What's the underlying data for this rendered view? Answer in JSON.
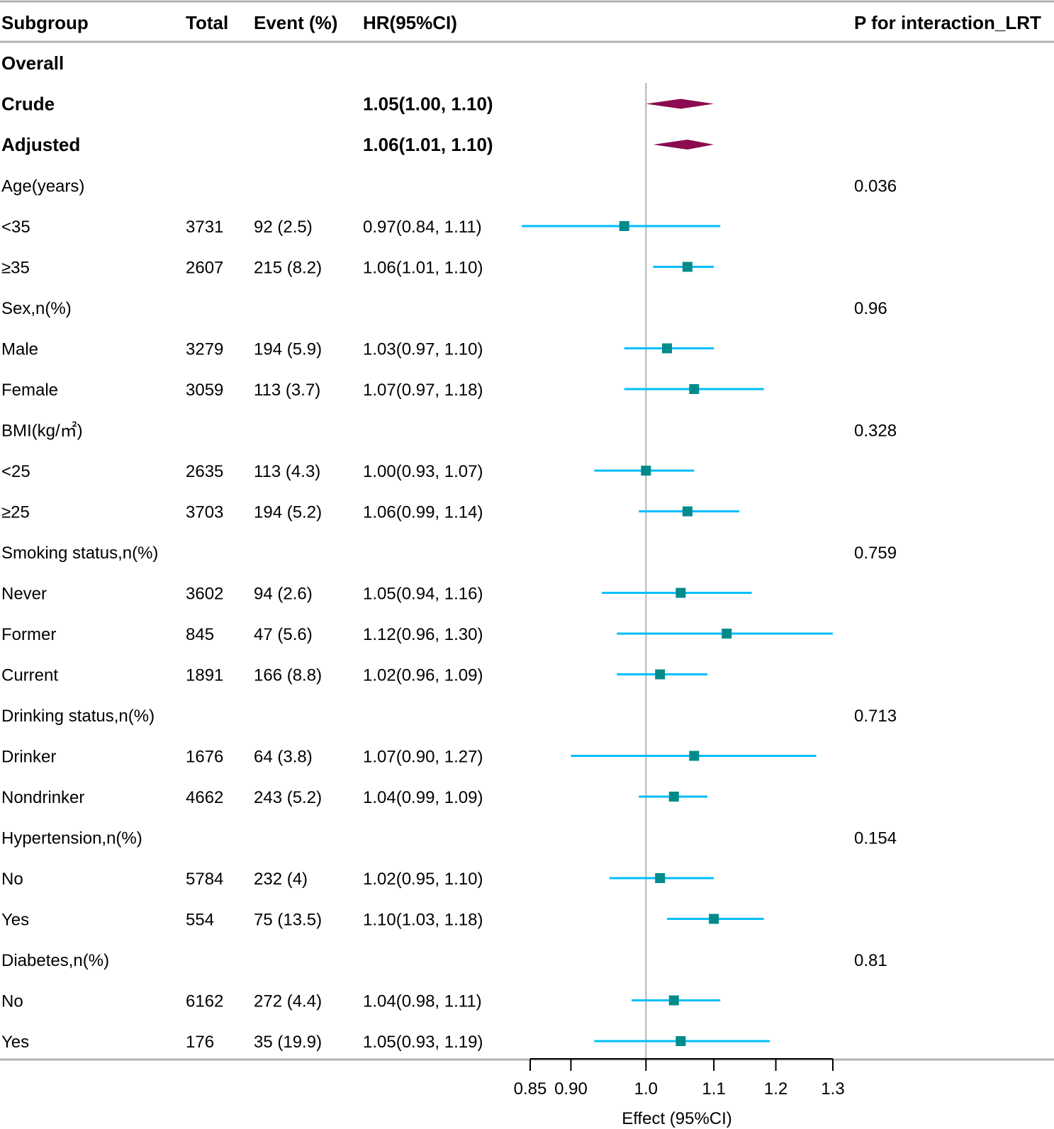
{
  "chart_data": {
    "type": "forest",
    "columns": {
      "subgroup": "Subgroup",
      "total": "Total",
      "event": "Event (%)",
      "hr": "HR(95%CI)",
      "p": "P for interaction_LRT"
    },
    "reference_line": 1.0,
    "x_axis": {
      "label": "Effect (95%CI)",
      "scale": "log",
      "range": [
        0.85,
        1.3
      ],
      "ticks": [
        {
          "value": 0.85,
          "label": "0.85"
        },
        {
          "value": 0.9,
          "label": "0.90"
        },
        {
          "value": 1.0,
          "label": "1.0"
        },
        {
          "value": 1.1,
          "label": "1.1"
        },
        {
          "value": 1.2,
          "label": "1.2"
        },
        {
          "value": 1.3,
          "label": "1.3"
        }
      ]
    },
    "colors": {
      "ci_line": "#00bfff",
      "point": "#008b8b",
      "diamond": "#8b0a50",
      "ref_line": "#b4b4b4",
      "rule": "#b4b4b4"
    },
    "rows": [
      {
        "label": "Overall",
        "bold": true
      },
      {
        "label": "Crude",
        "bold": true,
        "hr_text": "1.05(1.00, 1.10)",
        "est": 1.05,
        "lo": 1.0,
        "hi": 1.1,
        "shape": "diamond"
      },
      {
        "label": "Adjusted",
        "bold": true,
        "hr_text": "1.06(1.01, 1.10)",
        "est": 1.06,
        "lo": 1.01,
        "hi": 1.1,
        "shape": "diamond"
      },
      {
        "label": "Age(years)",
        "p": "0.036"
      },
      {
        "label": "<35",
        "total": "3731",
        "event": "92 (2.5)",
        "hr_text": "0.97(0.84, 1.11)",
        "est": 0.97,
        "lo": 0.84,
        "hi": 1.11
      },
      {
        "label": "≥35",
        "total": "2607",
        "event": "215 (8.2)",
        "hr_text": "1.06(1.01, 1.10)",
        "est": 1.06,
        "lo": 1.01,
        "hi": 1.1
      },
      {
        "label": "Sex,n(%)",
        "p": "0.96"
      },
      {
        "label": "Male",
        "total": "3279",
        "event": "194 (5.9)",
        "hr_text": "1.03(0.97, 1.10)",
        "est": 1.03,
        "lo": 0.97,
        "hi": 1.1
      },
      {
        "label": "Female",
        "total": "3059",
        "event": "113 (3.7)",
        "hr_text": "1.07(0.97, 1.18)",
        "est": 1.07,
        "lo": 0.97,
        "hi": 1.18
      },
      {
        "label": "BMI(kg/㎡)",
        "p": "0.328"
      },
      {
        "label": "<25",
        "total": "2635",
        "event": "113 (4.3)",
        "hr_text": "1.00(0.93, 1.07)",
        "est": 1.0,
        "lo": 0.93,
        "hi": 1.07
      },
      {
        "label": "≥25",
        "total": "3703",
        "event": "194 (5.2)",
        "hr_text": "1.06(0.99, 1.14)",
        "est": 1.06,
        "lo": 0.99,
        "hi": 1.14
      },
      {
        "label": "Smoking status,n(%)",
        "p": "0.759"
      },
      {
        "label": "Never",
        "total": "3602",
        "event": "94 (2.6)",
        "hr_text": "1.05(0.94, 1.16)",
        "est": 1.05,
        "lo": 0.94,
        "hi": 1.16
      },
      {
        "label": "Former",
        "total": "845",
        "event": "47 (5.6)",
        "hr_text": "1.12(0.96, 1.30)",
        "est": 1.12,
        "lo": 0.96,
        "hi": 1.3
      },
      {
        "label": "Current",
        "total": "1891",
        "event": "166 (8.8)",
        "hr_text": "1.02(0.96, 1.09)",
        "est": 1.02,
        "lo": 0.96,
        "hi": 1.09
      },
      {
        "label": "Drinking status,n(%)",
        "p": "0.713"
      },
      {
        "label": "Drinker",
        "total": "1676",
        "event": "64 (3.8)",
        "hr_text": "1.07(0.90, 1.27)",
        "est": 1.07,
        "lo": 0.9,
        "hi": 1.27
      },
      {
        "label": "Nondrinker",
        "total": "4662",
        "event": "243 (5.2)",
        "hr_text": "1.04(0.99, 1.09)",
        "est": 1.04,
        "lo": 0.99,
        "hi": 1.09
      },
      {
        "label": "Hypertension,n(%)",
        "p": "0.154"
      },
      {
        "label": "No",
        "total": "5784",
        "event": "232 (4)",
        "hr_text": "1.02(0.95, 1.10)",
        "est": 1.02,
        "lo": 0.95,
        "hi": 1.1
      },
      {
        "label": "Yes",
        "total": "554",
        "event": "75 (13.5)",
        "hr_text": "1.10(1.03, 1.18)",
        "est": 1.1,
        "lo": 1.03,
        "hi": 1.18
      },
      {
        "label": "Diabetes,n(%)",
        "p": "0.81"
      },
      {
        "label": "No",
        "total": "6162",
        "event": "272 (4.4)",
        "hr_text": "1.04(0.98, 1.11)",
        "est": 1.04,
        "lo": 0.98,
        "hi": 1.11
      },
      {
        "label": "Yes",
        "total": "176",
        "event": "35 (19.9)",
        "hr_text": "1.05(0.93, 1.19)",
        "est": 1.05,
        "lo": 0.93,
        "hi": 1.19
      }
    ]
  }
}
